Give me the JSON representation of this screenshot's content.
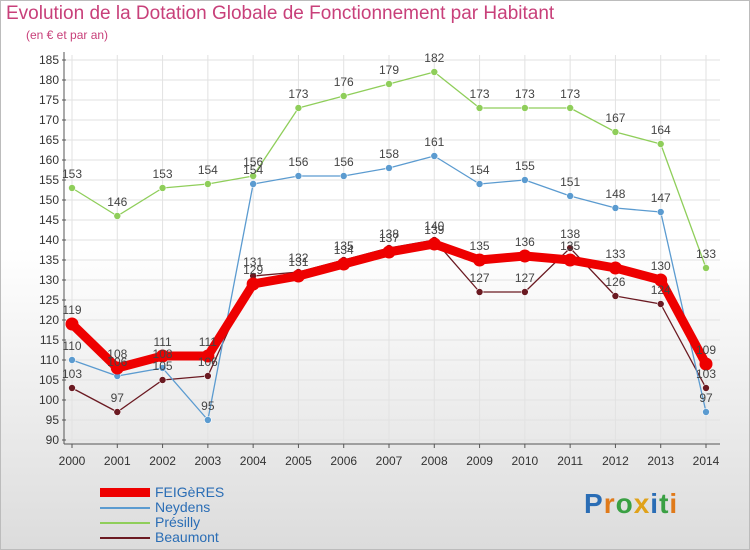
{
  "header": {
    "title": "Evolution de la Dotation Globale de Fonctionnement par Habitant",
    "subtitle": "(en € et par an)"
  },
  "logo": {
    "text": "Proxiti"
  },
  "chart_data": {
    "type": "line",
    "title": "Evolution de la Dotation Globale de Fonctionnement par Habitant",
    "subtitle": "(en € et par an)",
    "x": [
      "2000",
      "2001",
      "2002",
      "2003",
      "2004",
      "2005",
      "2006",
      "2007",
      "2008",
      "2009",
      "2010",
      "2011",
      "2012",
      "2013",
      "2014"
    ],
    "ylim": [
      90,
      185
    ],
    "yticks": [
      90,
      95,
      100,
      105,
      110,
      115,
      120,
      125,
      130,
      135,
      140,
      145,
      150,
      155,
      160,
      165,
      170,
      175,
      180,
      185
    ],
    "grid": true,
    "legend_position": "bottom-left",
    "series": [
      {
        "name": "FEIGèRES",
        "color": "#ee0000",
        "values": [
          119,
          108,
          111,
          111,
          129,
          131,
          134,
          137,
          139,
          135,
          136,
          135,
          133,
          130,
          109
        ]
      },
      {
        "name": "Neydens",
        "color": "#5b9bd0",
        "values": [
          110,
          106,
          108,
          95,
          154,
          156,
          156,
          158,
          161,
          154,
          155,
          151,
          148,
          147,
          97
        ]
      },
      {
        "name": "Présilly",
        "color": "#8fce5a",
        "values": [
          153,
          146,
          153,
          154,
          156,
          173,
          176,
          179,
          182,
          173,
          173,
          173,
          167,
          164,
          133
        ]
      },
      {
        "name": "Beaumont",
        "color": "#6b1a22",
        "values": [
          103,
          97,
          105,
          106,
          131,
          132,
          135,
          138,
          140,
          127,
          127,
          138,
          126,
          124,
          103
        ]
      }
    ]
  }
}
